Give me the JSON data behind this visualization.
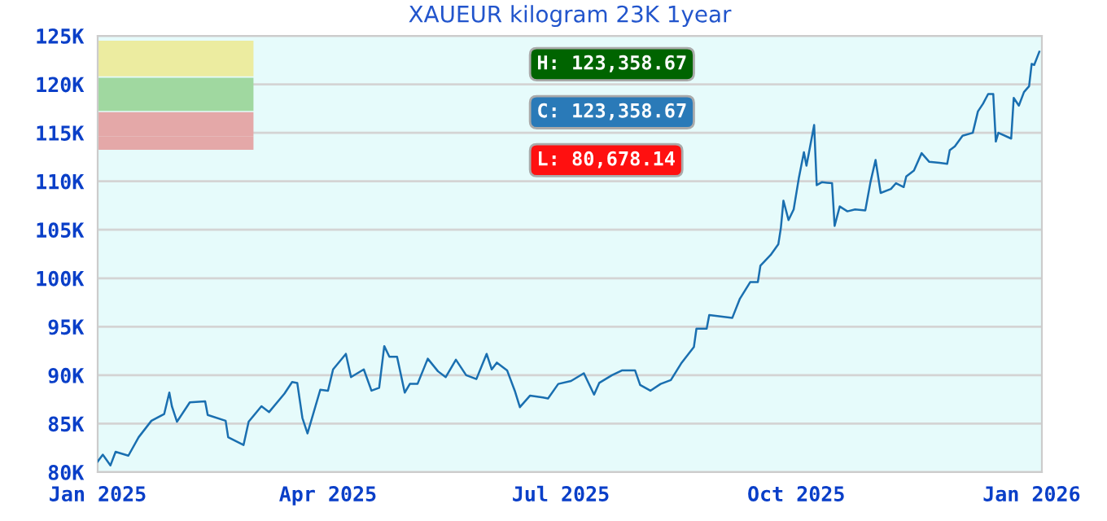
{
  "chart_data": {
    "type": "line",
    "title": "XAUEUR kilogram 23K 1year",
    "x": [
      "2025-01-01",
      "2025-01-03",
      "2025-01-06",
      "2025-01-08",
      "2025-01-13",
      "2025-01-17",
      "2025-01-22",
      "2025-01-27",
      "2025-01-29",
      "2025-01-30",
      "2025-02-01",
      "2025-02-06",
      "2025-02-12",
      "2025-02-13",
      "2025-02-20",
      "2025-02-21",
      "2025-02-27",
      "2025-03-01",
      "2025-03-06",
      "2025-03-09",
      "2025-03-15",
      "2025-03-18",
      "2025-03-20",
      "2025-03-22",
      "2025-03-24",
      "2025-03-29",
      "2025-04-01",
      "2025-04-03",
      "2025-04-08",
      "2025-04-10",
      "2025-04-15",
      "2025-04-18",
      "2025-04-21",
      "2025-04-23",
      "2025-04-25",
      "2025-04-28",
      "2025-05-01",
      "2025-05-03",
      "2025-05-06",
      "2025-05-10",
      "2025-05-14",
      "2025-05-17",
      "2025-05-21",
      "2025-05-25",
      "2025-05-29",
      "2025-06-02",
      "2025-06-04",
      "2025-06-06",
      "2025-06-10",
      "2025-06-13",
      "2025-06-15",
      "2025-06-19",
      "2025-06-24",
      "2025-06-26",
      "2025-06-30",
      "2025-07-05",
      "2025-07-10",
      "2025-07-14",
      "2025-07-16",
      "2025-07-21",
      "2025-07-25",
      "2025-07-30",
      "2025-08-01",
      "2025-08-05",
      "2025-08-09",
      "2025-08-13",
      "2025-08-17",
      "2025-08-22",
      "2025-08-23",
      "2025-08-27",
      "2025-08-28",
      "2025-09-06",
      "2025-09-09",
      "2025-09-13",
      "2025-09-16",
      "2025-09-17",
      "2025-09-21",
      "2025-09-24",
      "2025-09-25",
      "2025-09-26",
      "2025-09-28",
      "2025-09-30",
      "2025-10-02",
      "2025-10-04",
      "2025-10-05",
      "2025-10-06",
      "2025-10-08",
      "2025-10-09",
      "2025-10-11",
      "2025-10-15",
      "2025-10-16",
      "2025-10-18",
      "2025-10-21",
      "2025-10-24",
      "2025-10-28",
      "2025-10-30",
      "2025-11-01",
      "2025-11-03",
      "2025-11-07",
      "2025-11-09",
      "2025-11-12",
      "2025-11-13",
      "2025-11-16",
      "2025-11-19",
      "2025-11-22",
      "2025-11-26",
      "2025-11-29",
      "2025-11-30",
      "2025-12-02",
      "2025-12-05",
      "2025-12-09",
      "2025-12-11",
      "2025-12-13",
      "2025-12-15",
      "2025-12-17",
      "2025-12-18",
      "2025-12-19",
      "2025-12-24",
      "2025-12-25",
      "2025-12-27",
      "2025-12-29",
      "2025-12-31",
      "2026-01-01",
      "2026-01-02",
      "2026-01-04"
    ],
    "series": [
      {
        "color": "#1a6fb0",
        "values": [
          81100,
          81800,
          80700,
          82100,
          81700,
          83600,
          85300,
          86000,
          88200,
          86800,
          85200,
          87200,
          87300,
          85900,
          85300,
          83600,
          82800,
          85200,
          86800,
          86200,
          88100,
          89300,
          89200,
          85600,
          84000,
          88500,
          88400,
          90600,
          92200,
          89800,
          90600,
          88400,
          88700,
          93000,
          91900,
          91900,
          88200,
          89100,
          89100,
          91700,
          90400,
          89800,
          91600,
          90000,
          89600,
          92200,
          90600,
          91300,
          90500,
          88400,
          86700,
          87900,
          87700,
          87600,
          89100,
          89400,
          90200,
          88000,
          89200,
          90000,
          90500,
          90500,
          89000,
          88400,
          89100,
          89500,
          91200,
          92900,
          94800,
          94800,
          96200,
          95900,
          97900,
          99600,
          99600,
          101300,
          102400,
          103500,
          105200,
          108000,
          106000,
          107100,
          110300,
          113000,
          111600,
          113000,
          115800,
          109600,
          109900,
          109800,
          105400,
          107400,
          106900,
          107100,
          107000,
          109900,
          112200,
          108800,
          109200,
          109800,
          109400,
          110500,
          111100,
          112900,
          112000,
          111900,
          111800,
          113200,
          113600,
          114700,
          115000,
          117200,
          118000,
          119000,
          119000,
          114100,
          115000,
          114400,
          118600,
          117800,
          119200,
          119800,
          122100,
          122000,
          123360
        ]
      }
    ],
    "xlim": [
      "2025-01-01",
      "2026-01-05"
    ],
    "xticks": [
      {
        "value": "2025-01-01",
        "label": "Jan 2025"
      },
      {
        "value": "2025-04-01",
        "label": "Apr 2025"
      },
      {
        "value": "2025-07-01",
        "label": "Jul 2025"
      },
      {
        "value": "2025-10-01",
        "label": "Oct 2025"
      },
      {
        "value": "2026-01-01",
        "label": "Jan 2026"
      }
    ],
    "ylim": [
      80000,
      125000
    ],
    "yticks": [
      {
        "value": 80000,
        "label": "80K"
      },
      {
        "value": 85000,
        "label": "85K"
      },
      {
        "value": 90000,
        "label": "90K"
      },
      {
        "value": 95000,
        "label": "95K"
      },
      {
        "value": 100000,
        "label": "100K"
      },
      {
        "value": 105000,
        "label": "105K"
      },
      {
        "value": 110000,
        "label": "110K"
      },
      {
        "value": 115000,
        "label": "115K"
      },
      {
        "value": 120000,
        "label": "120K"
      },
      {
        "value": 125000,
        "label": "125K"
      }
    ],
    "grid": "y",
    "annotations": [
      "H: 123,358.67",
      "C: 123,358.67",
      "L: 80,678.14"
    ]
  }
}
